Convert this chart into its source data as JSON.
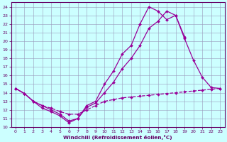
{
  "xlabel": "Windchill (Refroidissement éolien,°C)",
  "bg_color": "#ccffff",
  "line_color": "#990099",
  "grid_color": "#9999bb",
  "xlim": [
    -0.5,
    23.5
  ],
  "ylim": [
    10,
    24.5
  ],
  "yticks": [
    10,
    11,
    12,
    13,
    14,
    15,
    16,
    17,
    18,
    19,
    20,
    21,
    22,
    23,
    24
  ],
  "xticks": [
    0,
    1,
    2,
    3,
    4,
    5,
    6,
    7,
    8,
    9,
    10,
    11,
    12,
    13,
    14,
    15,
    16,
    17,
    18,
    19,
    20,
    21,
    22,
    23
  ],
  "series": [
    {
      "linestyle": "--",
      "x": [
        0,
        1,
        2,
        3,
        4,
        5,
        6,
        7,
        8,
        9,
        10,
        11,
        12,
        13,
        14,
        15,
        16,
        17,
        18,
        19,
        20,
        21,
        22,
        23
      ],
      "y": [
        14.5,
        13.9,
        13.0,
        12.5,
        12.2,
        11.8,
        11.5,
        11.5,
        12.0,
        12.5,
        13.0,
        13.2,
        13.4,
        13.5,
        13.6,
        13.7,
        13.8,
        13.9,
        14.0,
        14.1,
        14.2,
        14.3,
        14.4,
        14.5
      ]
    },
    {
      "linestyle": "-",
      "x": [
        0,
        1,
        2,
        3,
        4,
        5,
        6,
        7,
        8,
        9,
        10,
        11,
        12,
        13,
        14,
        15,
        16,
        17,
        18,
        19,
        20,
        21,
        22,
        23
      ],
      "y": [
        14.5,
        13.9,
        13.0,
        12.2,
        11.8,
        11.3,
        10.5,
        11.0,
        12.5,
        13.0,
        15.0,
        16.5,
        18.5,
        19.5,
        22.0,
        24.0,
        23.5,
        22.5,
        23.0,
        20.5,
        null,
        null,
        null,
        null
      ]
    },
    {
      "linestyle": "-",
      "x": [
        0,
        1,
        2,
        3,
        4,
        5,
        6,
        7,
        8,
        9,
        10,
        11,
        12,
        13,
        14,
        15,
        16,
        17,
        18,
        19,
        20,
        21,
        22,
        23
      ],
      "y": [
        14.5,
        13.9,
        13.0,
        12.5,
        12.0,
        11.5,
        10.7,
        11.0,
        12.3,
        12.8,
        14.0,
        15.2,
        16.8,
        18.0,
        19.5,
        21.5,
        22.3,
        23.5,
        23.0,
        20.3,
        17.8,
        15.8,
        14.6,
        14.5
      ]
    }
  ]
}
